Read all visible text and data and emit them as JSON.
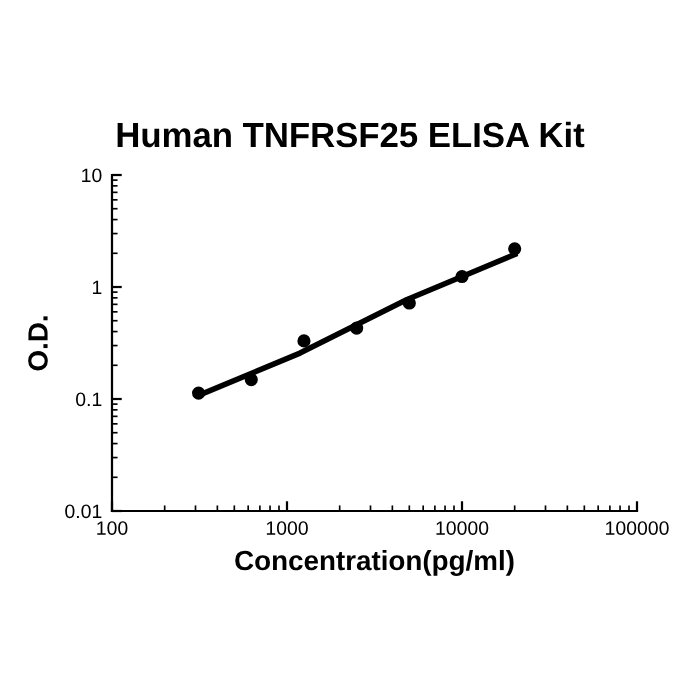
{
  "chart_data": {
    "type": "scatter",
    "title": "Human TNFRSF25 ELISA Kit",
    "xlabel": "Concentration(pg/ml)",
    "ylabel": "O.D.",
    "log": "xy",
    "series": [
      {
        "color": "#000000",
        "marker": "circle",
        "x": [
          312.5,
          625,
          1250,
          2500,
          5000,
          10000,
          20000
        ],
        "values": [
          0.113,
          0.149,
          0.33,
          0.43,
          0.72,
          1.24,
          2.19
        ]
      },
      {
        "type": "line",
        "color": "#000000",
        "marker": "none",
        "x": [
          312.5,
          1187,
          4820,
          20000
        ],
        "values": [
          0.108,
          0.257,
          0.77,
          1.95
        ]
      }
    ],
    "xlim": [
      100,
      100000
    ],
    "xticks": [
      100,
      1000,
      10000,
      100000
    ],
    "ylim": [
      0.01,
      10
    ],
    "yticks": [
      0.01,
      0.1,
      1,
      10
    ],
    "grid": false,
    "legend": false
  }
}
